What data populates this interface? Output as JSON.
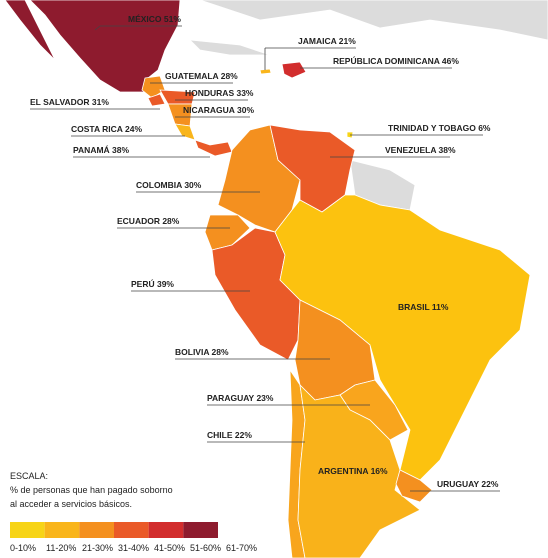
{
  "labels": [
    "MÉXICO 51%",
    "JAMAICA 21%",
    "REPÚBLICA DOMINICANA 46%",
    "GUATEMALA 28%",
    "HONDURAS 33%",
    "EL SALVADOR 31%",
    "NICARAGUA 30%",
    "COSTA RICA 24%",
    "TRINIDAD Y TOBAGO 6%",
    "PANAMÁ 38%",
    "VENEZUELA 38%",
    "COLOMBIA 30%",
    "ECUADOR 28%",
    "PERÚ 39%",
    "BRASIL 11%",
    "BOLIVIA 28%",
    "PARAGUAY 23%",
    "CHILE 22%",
    "ARGENTINA 16%",
    "URUGUAY 22%"
  ],
  "legend": {
    "title": "ESCALA:",
    "description": [
      "% de personas que han pagado soborno",
      "al acceder a servicios básicos."
    ],
    "ranges": [
      "0-10%",
      "11-20%",
      "21-30%",
      "31-40%",
      "41-50%",
      "51-60%",
      "61-70%"
    ]
  }
}
